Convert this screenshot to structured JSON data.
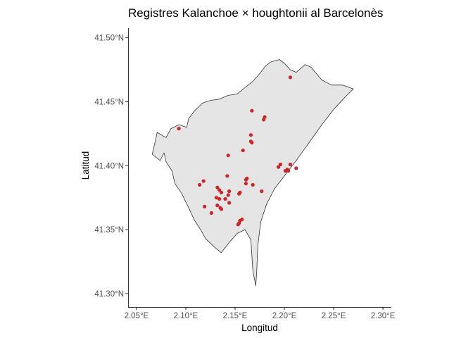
{
  "chart_data": {
    "type": "scatter",
    "title": "Registres Kalanchoe × houghtonii al Barcelonès",
    "xlabel": "Longitud",
    "ylabel": "Latitud",
    "xlim": [
      2.0415,
      2.3085
    ],
    "ylim": [
      41.2895,
      41.5075
    ],
    "x_ticks": [
      2.05,
      2.1,
      2.15,
      2.2,
      2.25,
      2.3
    ],
    "x_tick_labels": [
      "2.05°E",
      "2.10°E",
      "2.15°E",
      "2.20°E",
      "2.25°E",
      "2.30°E"
    ],
    "y_ticks": [
      41.3,
      41.35,
      41.4,
      41.45,
      41.5
    ],
    "y_tick_labels": [
      "41.30°N",
      "41.35°N",
      "41.40°N",
      "41.45°N",
      "41.50°N"
    ],
    "grid": false,
    "colors": {
      "points": "#cd2626",
      "region_fill": "#e5e5e5",
      "region_stroke": "#333333",
      "axis": "#333333"
    },
    "region_outline": [
      [
        2.186,
        41.481
      ],
      [
        2.195,
        41.483
      ],
      [
        2.2,
        41.48
      ],
      [
        2.206,
        41.475
      ],
      [
        2.212,
        41.473
      ],
      [
        2.221,
        41.479
      ],
      [
        2.227,
        41.477
      ],
      [
        2.238,
        41.467
      ],
      [
        2.248,
        41.463
      ],
      [
        2.259,
        41.463
      ],
      [
        2.27,
        41.46
      ],
      [
        2.262,
        41.454
      ],
      [
        2.25,
        41.444
      ],
      [
        2.238,
        41.432
      ],
      [
        2.225,
        41.418
      ],
      [
        2.213,
        41.405
      ],
      [
        2.201,
        41.393
      ],
      [
        2.19,
        41.382
      ],
      [
        2.182,
        41.37
      ],
      [
        2.176,
        41.356
      ],
      [
        2.173,
        41.337
      ],
      [
        2.172,
        41.318
      ],
      [
        2.171,
        41.306
      ],
      [
        2.168,
        41.318
      ],
      [
        2.166,
        41.342
      ],
      [
        2.16,
        41.35
      ],
      [
        2.152,
        41.347
      ],
      [
        2.144,
        41.34
      ],
      [
        2.136,
        41.332
      ],
      [
        2.128,
        41.337
      ],
      [
        2.12,
        41.343
      ],
      [
        2.115,
        41.35
      ],
      [
        2.109,
        41.357
      ],
      [
        2.103,
        41.367
      ],
      [
        2.096,
        41.378
      ],
      [
        2.089,
        41.386
      ],
      [
        2.086,
        41.396
      ],
      [
        2.08,
        41.403
      ],
      [
        2.078,
        41.41
      ],
      [
        2.074,
        41.404
      ],
      [
        2.066,
        41.409
      ],
      [
        2.069,
        41.419
      ],
      [
        2.071,
        41.426
      ],
      [
        2.08,
        41.422
      ],
      [
        2.085,
        41.429
      ],
      [
        2.093,
        41.432
      ],
      [
        2.101,
        41.43
      ],
      [
        2.103,
        41.437
      ],
      [
        2.109,
        41.443
      ],
      [
        2.117,
        41.449
      ],
      [
        2.125,
        41.451
      ],
      [
        2.134,
        41.452
      ],
      [
        2.143,
        41.455
      ],
      [
        2.152,
        41.456
      ],
      [
        2.16,
        41.461
      ],
      [
        2.168,
        41.466
      ],
      [
        2.175,
        41.472
      ],
      [
        2.181,
        41.478
      ]
    ],
    "points": [
      [
        2.206,
        41.469
      ],
      [
        2.093,
        41.429
      ],
      [
        2.167,
        41.443
      ],
      [
        2.18,
        41.438
      ],
      [
        2.179,
        41.436
      ],
      [
        2.166,
        41.424
      ],
      [
        2.166,
        41.419
      ],
      [
        2.167,
        41.418
      ],
      [
        2.158,
        41.412
      ],
      [
        2.143,
        41.408
      ],
      [
        2.196,
        41.401
      ],
      [
        2.194,
        41.399
      ],
      [
        2.203,
        41.397
      ],
      [
        2.204,
        41.396
      ],
      [
        2.206,
        41.401
      ],
      [
        2.212,
        41.398
      ],
      [
        2.201,
        41.396
      ],
      [
        2.142,
        41.392
      ],
      [
        2.162,
        41.39
      ],
      [
        2.161,
        41.389
      ],
      [
        2.118,
        41.388
      ],
      [
        2.114,
        41.385
      ],
      [
        2.161,
        41.386
      ],
      [
        2.168,
        41.385
      ],
      [
        2.132,
        41.383
      ],
      [
        2.144,
        41.38
      ],
      [
        2.134,
        41.381
      ],
      [
        2.136,
        41.379
      ],
      [
        2.155,
        41.379
      ],
      [
        2.154,
        41.378
      ],
      [
        2.177,
        41.38
      ],
      [
        2.143,
        41.377
      ],
      [
        2.131,
        41.375
      ],
      [
        2.134,
        41.374
      ],
      [
        2.14,
        41.374
      ],
      [
        2.144,
        41.371
      ],
      [
        2.132,
        41.369
      ],
      [
        2.119,
        41.368
      ],
      [
        2.135,
        41.367
      ],
      [
        2.136,
        41.366
      ],
      [
        2.126,
        41.363
      ],
      [
        2.157,
        41.358
      ],
      [
        2.155,
        41.357
      ],
      [
        2.154,
        41.355
      ],
      [
        2.153,
        41.354
      ]
    ]
  }
}
